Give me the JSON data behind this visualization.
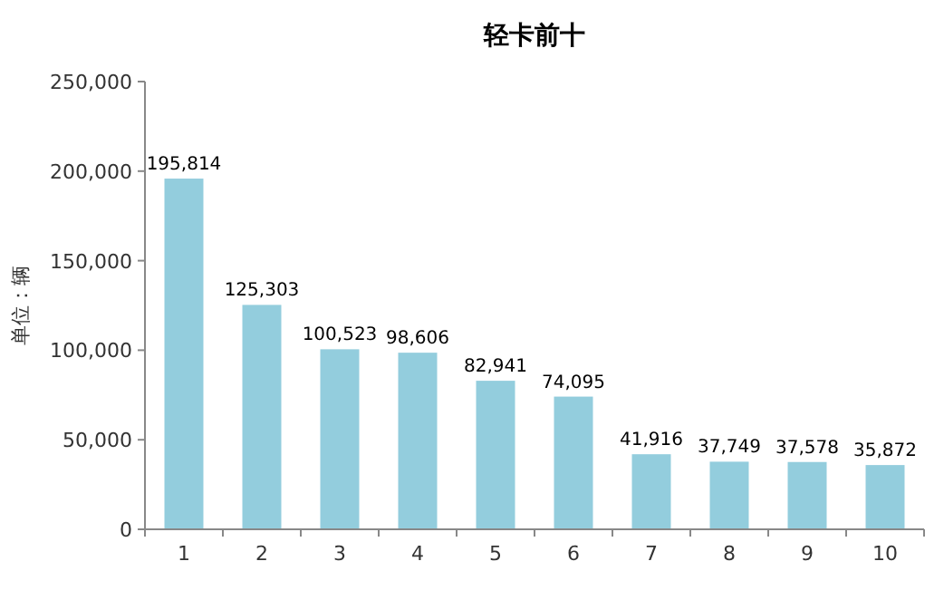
{
  "chart_data": {
    "type": "bar",
    "title": "轻卡前十",
    "ylabel": "单位：辆",
    "categories": [
      "1",
      "2",
      "3",
      "4",
      "5",
      "6",
      "7",
      "8",
      "9",
      "10"
    ],
    "values": [
      195814,
      125303,
      100523,
      98606,
      82941,
      74095,
      41916,
      37749,
      37578,
      35872
    ],
    "value_labels": [
      "195,814",
      "125,303",
      "100,523",
      "98,606",
      "82,941",
      "74,095",
      "41,916",
      "37,749",
      "37,578",
      "35,872"
    ],
    "color": "#93cddd",
    "ylim": [
      0,
      250000
    ],
    "yticks": [
      {
        "value": 0,
        "label": "0"
      },
      {
        "value": 50000,
        "label": "50,000"
      },
      {
        "value": 100000,
        "label": "100,000"
      },
      {
        "value": 150000,
        "label": "150,000"
      },
      {
        "value": 200000,
        "label": "200,000"
      },
      {
        "value": 250000,
        "label": "250,000"
      }
    ],
    "grid": false
  }
}
